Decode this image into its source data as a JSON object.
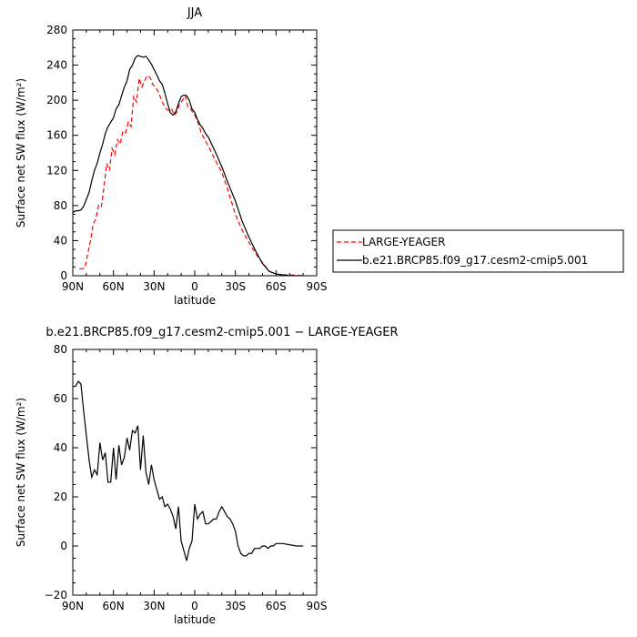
{
  "chart_data": [
    {
      "type": "line",
      "title": "JJA",
      "xlabel": "latitude",
      "ylabel": "Surface net SW flux (W/m²)",
      "xlim": [
        90,
        -90
      ],
      "ylim": [
        0,
        280
      ],
      "x_ticks": [
        90,
        60,
        30,
        0,
        -30,
        -60,
        -90
      ],
      "x_tick_labels": [
        "90N",
        "60N",
        "30N",
        "0",
        "30S",
        "60S",
        "90S"
      ],
      "y_ticks": [
        0,
        40,
        80,
        120,
        160,
        200,
        240,
        280
      ],
      "y_tick_labels": [
        "0",
        "40",
        "80",
        "120",
        "160",
        "200",
        "240",
        "280"
      ],
      "legend_position": "right",
      "series": [
        {
          "name": "LARGE-YEAGER",
          "color": "#ff0000",
          "dash": "dashed",
          "x": [
            85,
            83,
            81,
            79,
            77,
            75,
            73,
            71,
            69,
            67,
            65,
            63,
            61,
            59,
            57,
            55,
            53,
            51,
            49,
            47,
            45,
            43,
            41,
            39,
            37,
            35,
            33,
            31,
            29,
            27,
            25,
            23,
            21,
            19,
            17,
            15,
            13,
            11,
            9,
            7,
            5,
            3,
            1,
            -1,
            -3,
            -5,
            -10,
            -15,
            -20,
            -25,
            -30,
            -35,
            -40,
            -45,
            -50,
            -55,
            -60,
            -65,
            -70,
            -75,
            -80
          ],
          "y": [
            8,
            8,
            9,
            25,
            40,
            58,
            65,
            80,
            78,
            100,
            128,
            120,
            145,
            138,
            155,
            150,
            165,
            163,
            175,
            170,
            205,
            198,
            225,
            215,
            222,
            228,
            226,
            218,
            215,
            210,
            202,
            195,
            190,
            188,
            190,
            183,
            187,
            196,
            200,
            205,
            192,
            190,
            185,
            180,
            172,
            162,
            148,
            132,
            118,
            95,
            70,
            52,
            38,
            25,
            15,
            5,
            2,
            1,
            1,
            0.5,
            0
          ]
        },
        {
          "name": "b.e21.BRCP85.f09_g17.cesm2-cmip5.001",
          "color": "#000000",
          "dash": "solid",
          "x": [
            90,
            88,
            86,
            84,
            82,
            80,
            78,
            76,
            74,
            72,
            70,
            68,
            66,
            64,
            62,
            60,
            58,
            56,
            54,
            52,
            50,
            48,
            46,
            44,
            42,
            40,
            38,
            36,
            34,
            32,
            30,
            28,
            26,
            24,
            22,
            20,
            18,
            16,
            14,
            12,
            10,
            8,
            6,
            4,
            2,
            0,
            -2,
            -4,
            -6,
            -8,
            -10,
            -15,
            -20,
            -25,
            -30,
            -35,
            -40,
            -45,
            -50,
            -55,
            -60,
            -65,
            -70,
            -75,
            -80
          ],
          "y": [
            72,
            74,
            74,
            75,
            79,
            87,
            95,
            108,
            120,
            128,
            140,
            150,
            162,
            170,
            175,
            180,
            190,
            195,
            205,
            215,
            222,
            235,
            240,
            248,
            251,
            250,
            249,
            250,
            246,
            241,
            235,
            229,
            222,
            218,
            208,
            196,
            186,
            183,
            187,
            196,
            204,
            206,
            205,
            200,
            190,
            186,
            178,
            172,
            168,
            162,
            158,
            142,
            124,
            104,
            85,
            62,
            44,
            28,
            14,
            5,
            2,
            1,
            0,
            0,
            0
          ]
        }
      ]
    },
    {
      "type": "line",
      "title": "b.e21.BRCP85.f09_g17.cesm2-cmip5.001 − LARGE-YEAGER",
      "xlabel": "latitude",
      "ylabel": "Surface net SW flux (W/m²)",
      "xlim": [
        90,
        -90
      ],
      "ylim": [
        -20,
        80
      ],
      "x_ticks": [
        90,
        60,
        30,
        0,
        -30,
        -60,
        -90
      ],
      "x_tick_labels": [
        "90N",
        "60N",
        "30N",
        "0",
        "30S",
        "60S",
        "90S"
      ],
      "y_ticks": [
        -20,
        0,
        20,
        40,
        60,
        80
      ],
      "y_tick_labels": [
        "−20",
        "0",
        "20",
        "40",
        "60",
        "80"
      ],
      "series": [
        {
          "color": "#000000",
          "dash": "solid",
          "x": [
            90,
            88,
            86,
            84,
            82,
            80,
            78,
            76,
            74,
            72,
            70,
            68,
            66,
            64,
            62,
            60,
            58,
            56,
            54,
            52,
            50,
            48,
            46,
            44,
            42,
            40,
            38,
            36,
            34,
            32,
            30,
            28,
            26,
            24,
            22,
            20,
            18,
            16,
            14,
            12,
            10,
            8,
            6,
            4,
            2,
            0,
            -2,
            -4,
            -6,
            -8,
            -10,
            -12,
            -14,
            -16,
            -18,
            -20,
            -22,
            -24,
            -26,
            -28,
            -30,
            -32,
            -34,
            -36,
            -38,
            -40,
            -42,
            -44,
            -46,
            -48,
            -50,
            -52,
            -54,
            -56,
            -58,
            -60,
            -65,
            -70,
            -75,
            -80
          ],
          "y": [
            65,
            65,
            67,
            66,
            55,
            45,
            35,
            28,
            31,
            29,
            42,
            35,
            38,
            26,
            26,
            40,
            27,
            41,
            33,
            36,
            44,
            39,
            47,
            46,
            49,
            31,
            45,
            30,
            25,
            33,
            27,
            23,
            19,
            20,
            16,
            17,
            15,
            12,
            7,
            16,
            2,
            -2,
            -6,
            -1,
            2,
            17,
            11,
            13,
            14,
            9,
            9,
            10,
            11,
            11,
            14,
            16,
            14,
            12,
            11,
            9,
            6,
            0,
            -3,
            -4,
            -4,
            -3,
            -3,
            -1,
            -1,
            -1,
            0,
            0,
            -1,
            0,
            0,
            1,
            1,
            0.5,
            0,
            0
          ]
        }
      ]
    }
  ]
}
